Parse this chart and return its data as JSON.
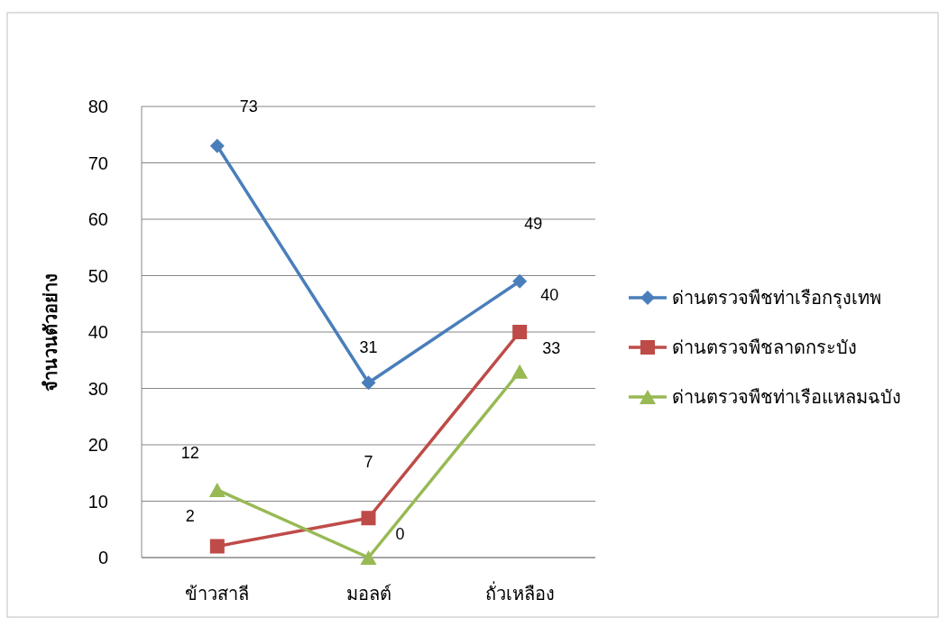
{
  "chart_data": {
    "type": "line",
    "ylabel": "จำนวนตัวอย่าง",
    "categories": [
      "ข้าวสาลี",
      "มอลต์",
      "ถั่วเหลือง"
    ],
    "series": [
      {
        "name": "ด่านตรวจพืชท่าเรือกรุงเทพ",
        "color": "#4a7ebb",
        "marker": "diamond",
        "values": [
          73,
          31,
          49
        ]
      },
      {
        "name": "ด่านตรวจพืชลาดกระบัง",
        "color": "#be4b48",
        "marker": "square",
        "values": [
          2,
          7,
          40
        ]
      },
      {
        "name": "ด่านตรวจพืชท่าเรือแหลมฉบัง",
        "color": "#98b954",
        "marker": "triangle",
        "values": [
          12,
          0,
          33
        ]
      }
    ],
    "ylim": [
      0,
      80
    ],
    "yticks": [
      0,
      10,
      20,
      30,
      40,
      50,
      60,
      70,
      80
    ],
    "grid": "y",
    "legend": "right",
    "data_labels": true
  }
}
